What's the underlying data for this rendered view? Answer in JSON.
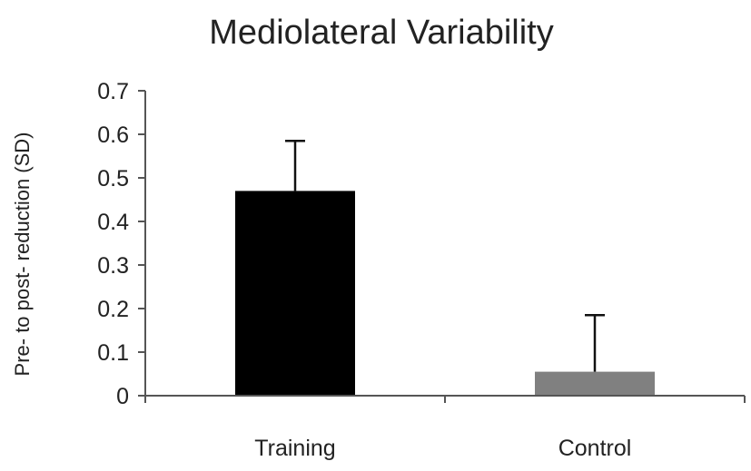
{
  "chart_data": {
    "type": "bar",
    "title": "Mediolateral Variability",
    "xlabel": "",
    "ylabel": "Pre- to post- reduction (SD)",
    "categories": [
      "Training",
      "Control"
    ],
    "values": [
      0.47,
      0.055
    ],
    "error_upper": [
      0.115,
      0.13
    ],
    "bar_colors": [
      "#000000",
      "#808080"
    ],
    "ylim": [
      0,
      0.7
    ],
    "yticks": [
      0,
      0.1,
      0.2,
      0.3,
      0.4,
      0.5,
      0.6,
      0.7
    ],
    "ytick_labels": [
      "0",
      "0.1",
      "0.2",
      "0.3",
      "0.4",
      "0.5",
      "0.6",
      "0.7"
    ],
    "grid": false,
    "legend": "none"
  }
}
